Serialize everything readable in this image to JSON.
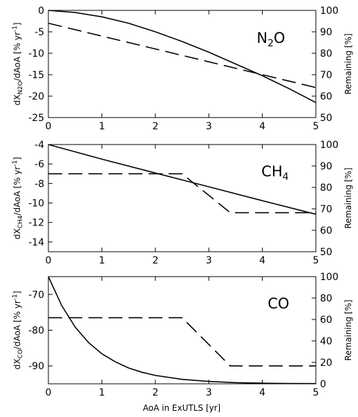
{
  "chart_data": [
    {
      "type": "line",
      "title": "",
      "species_label": {
        "main": "N",
        "sub": "2",
        "rest": "O"
      },
      "xlim": [
        0,
        5
      ],
      "ylim_left": [
        -25,
        0
      ],
      "ylim_right": [
        50,
        100
      ],
      "xticks": [
        "0",
        "1",
        "2",
        "3",
        "4",
        "5"
      ],
      "yticks_left": [
        "0",
        "-5",
        "-10",
        "-15",
        "-20",
        "-25"
      ],
      "yticks_right": [
        "100",
        "90",
        "80",
        "70",
        "60",
        "50"
      ],
      "ylabel_left": {
        "pre": "dX",
        "sub": "N2O",
        "post": "/dAoA [% yr",
        "sup": "-1",
        "end": "]"
      },
      "ylabel_right": "Remaining [%]",
      "grid": false,
      "series": [
        {
          "style": "solid",
          "axis": "right",
          "x": [
            0,
            0.5,
            1,
            1.5,
            2,
            2.5,
            3,
            3.5,
            4,
            4.5,
            5
          ],
          "y": [
            100,
            99.0,
            97.0,
            94.0,
            90.0,
            85.5,
            80.5,
            75.0,
            69.5,
            63.5,
            57.0
          ]
        },
        {
          "style": "dashed",
          "axis": "left",
          "x": [
            0,
            5
          ],
          "y": [
            -3.0,
            -18.0
          ]
        }
      ]
    },
    {
      "type": "line",
      "title": "",
      "species_label": {
        "main": "CH",
        "sub": "4",
        "rest": ""
      },
      "xlim": [
        0,
        5
      ],
      "ylim_left": [
        -15,
        -4
      ],
      "ylim_right": [
        50,
        100
      ],
      "xticks": [
        "0",
        "1",
        "2",
        "3",
        "4",
        "5"
      ],
      "yticks_left": [
        "-4",
        "-6",
        "-8",
        "-10",
        "-12",
        "-14"
      ],
      "yticks_right": [
        "100",
        "90",
        "80",
        "70",
        "60",
        "50"
      ],
      "ylabel_left": {
        "pre": "dX",
        "sub": "CH4",
        "post": "/dAoA [% yr",
        "sup": "-1",
        "end": "]"
      },
      "ylabel_right": "Remaining [%]",
      "grid": false,
      "series": [
        {
          "style": "solid",
          "axis": "right",
          "x": [
            0,
            1,
            2,
            3,
            4,
            5
          ],
          "y": [
            100,
            93.2,
            86.7,
            80.3,
            73.8,
            67.5
          ]
        },
        {
          "style": "dashed",
          "axis": "left",
          "x": [
            0,
            2.5,
            3.4,
            5
          ],
          "y": [
            -7.0,
            -7.0,
            -11.0,
            -11.0
          ]
        }
      ]
    },
    {
      "type": "line",
      "title": "",
      "species_label": {
        "main": "CO",
        "sub": "",
        "rest": ""
      },
      "xlim": [
        0,
        5
      ],
      "ylim_left": [
        -95,
        -65
      ],
      "ylim_right": [
        0,
        100
      ],
      "xticks": [
        "0",
        "1",
        "2",
        "3",
        "4",
        "5"
      ],
      "yticks_left": [
        "-70",
        "-80",
        "-90"
      ],
      "yticks_right": [
        "100",
        "80",
        "60",
        "40",
        "20",
        "0"
      ],
      "ylabel_left": {
        "pre": "dX",
        "sub": "CO",
        "post": "/dAoA [% yr",
        "sup": "-1",
        "end": "]"
      },
      "ylabel_right": "Remaining [%]",
      "xlabel": "AoA in ExUTLS [yr]",
      "grid": false,
      "series": [
        {
          "style": "solid",
          "axis": "right",
          "x": [
            0,
            0.25,
            0.5,
            0.75,
            1,
            1.25,
            1.5,
            1.75,
            2,
            2.5,
            3,
            3.5,
            4,
            4.5,
            5
          ],
          "y": [
            100,
            73.0,
            53.0,
            38.5,
            28.0,
            20.5,
            14.8,
            10.8,
            7.8,
            4.1,
            2.2,
            1.1,
            0.6,
            0.3,
            0.2
          ]
        },
        {
          "style": "dashed",
          "axis": "left",
          "x": [
            0,
            2.5,
            3.4,
            5
          ],
          "y": [
            -76.5,
            -76.5,
            -90.0,
            -90.0
          ]
        }
      ]
    }
  ]
}
